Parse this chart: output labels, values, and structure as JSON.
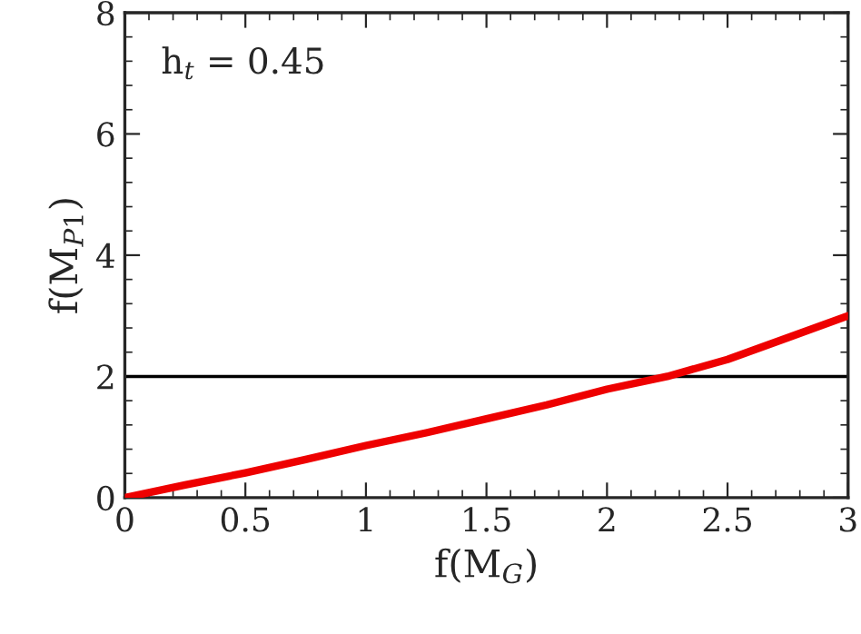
{
  "chart_data": {
    "type": "line",
    "xlabel": "f(M$_{G}$)",
    "ylabel": "f(M$_{P1}$)",
    "annotations": [
      "h$_{t}$ = 0.45"
    ],
    "x": [
      0,
      0.25,
      0.5,
      0.75,
      1,
      1.25,
      1.5,
      1.75,
      2,
      2.25,
      2.5,
      2.75,
      3
    ],
    "series": [
      {
        "color": "#ee0000",
        "values": [
          0,
          0.21,
          0.41,
          0.63,
          0.86,
          1.07,
          1.3,
          1.53,
          1.79,
          2.0,
          2.28,
          2.64,
          3.0
        ]
      }
    ],
    "xlim": [
      0,
      3
    ],
    "ylim": [
      0,
      8
    ],
    "xticks": [
      0,
      0.5,
      1,
      1.5,
      2,
      2.5,
      3
    ],
    "yticks": [
      0,
      2,
      4,
      6,
      8
    ],
    "ref_lines": [
      {
        "axis": "y",
        "value": 2,
        "color": "#000000"
      }
    ],
    "grid": false,
    "legend": false,
    "marker": "none",
    "line_style": "solid"
  }
}
